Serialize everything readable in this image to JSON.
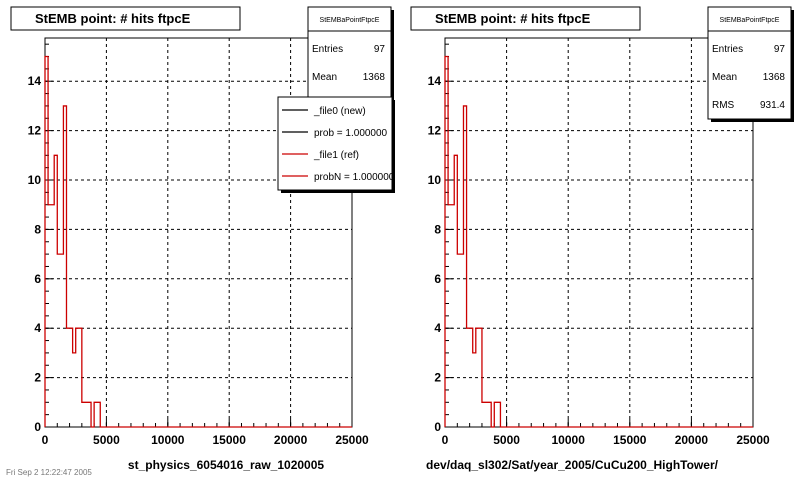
{
  "footer": "Fri Sep 2 12:22:47 2005",
  "chart_data": [
    {
      "type": "step-histogram",
      "title": "StEMB point: # hits ftpcE",
      "xlabel": "st_physics_6054016_raw_1020005",
      "ylabel": "",
      "xlim": [
        0,
        25000
      ],
      "ylim": [
        0,
        15.75
      ],
      "xticks": [
        0,
        5000,
        10000,
        15000,
        20000,
        25000
      ],
      "yticks": [
        0,
        2,
        4,
        6,
        8,
        10,
        12,
        14
      ],
      "grid": true,
      "stats": {
        "title": "StEMBaPointFtpcE",
        "rows": [
          {
            "label": "Entries",
            "value": "97"
          },
          {
            "label": "Mean",
            "value": "1368"
          }
        ]
      },
      "legend": {
        "placement": "top-right",
        "entries": [
          {
            "label": "_file0 (new)",
            "color": "#000000"
          },
          {
            "label": "prob = 1.000000",
            "color": "#000000"
          },
          {
            "label": "_file1 (ref)",
            "color": "#cc0000"
          },
          {
            "label": "probN = 1.000000",
            "color": "#cc0000"
          }
        ]
      },
      "series": [
        {
          "color": "#cc0000",
          "bin_width": 250,
          "values": [
            15,
            9,
            9,
            11,
            7,
            7,
            13,
            4,
            4,
            3,
            4,
            4,
            1,
            1,
            1,
            0,
            1,
            1
          ]
        }
      ]
    },
    {
      "type": "step-histogram",
      "title": "StEMB point: # hits ftpcE",
      "xlabel": "dev/daq_sl302/Sat/year_2005/CuCu200_HighTower/",
      "ylabel": "",
      "xlim": [
        0,
        25000
      ],
      "ylim": [
        0,
        15.75
      ],
      "xticks": [
        0,
        5000,
        10000,
        15000,
        20000,
        25000
      ],
      "yticks": [
        0,
        2,
        4,
        6,
        8,
        10,
        12,
        14
      ],
      "grid": true,
      "stats": {
        "title": "StEMBaPointFtpcE",
        "rows": [
          {
            "label": "Entries",
            "value": "97"
          },
          {
            "label": "Mean",
            "value": "1368"
          },
          {
            "label": "RMS",
            "value": "931.4"
          }
        ]
      },
      "series": [
        {
          "color": "#cc0000",
          "bin_width": 250,
          "values": [
            15,
            9,
            9,
            11,
            7,
            7,
            13,
            4,
            4,
            3,
            4,
            4,
            1,
            1,
            1,
            0,
            1,
            1
          ]
        }
      ]
    }
  ]
}
